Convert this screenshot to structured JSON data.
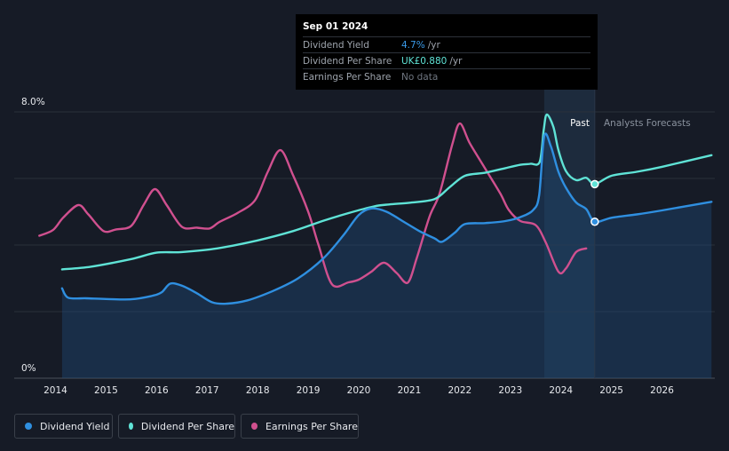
{
  "tooltip": {
    "date": "Sep 01 2024",
    "rows": [
      {
        "label": "Dividend Yield",
        "value": "4.7%",
        "unit": "/yr"
      },
      {
        "label": "Dividend Per Share",
        "value": "UK£0.880",
        "unit": "/yr"
      },
      {
        "label": "Earnings Per Share",
        "value": "No data",
        "unit": ""
      }
    ]
  },
  "period_labels": {
    "past": "Past",
    "forecast": "Analysts Forecasts"
  },
  "legend": [
    {
      "label": "Dividend Yield",
      "color": "#2f8fe0"
    },
    {
      "label": "Dividend Per Share",
      "color": "#5fe3d6"
    },
    {
      "label": "Earnings Per Share",
      "color": "#d0508f"
    }
  ],
  "colors": {
    "background": "#161b26",
    "forecast_shade": "#1d2b3d",
    "dividend_yield": "#2f8fe0",
    "dividend_per_share": "#5fe3d6",
    "earnings_per_share": "#d0508f"
  },
  "chart_data": {
    "type": "line",
    "x_ticks": [
      "2014",
      "2015",
      "2016",
      "2017",
      "2018",
      "2019",
      "2020",
      "2021",
      "2022",
      "2023",
      "2024",
      "2025",
      "2026"
    ],
    "y_tick_labels": [
      "8.0%",
      "0%"
    ],
    "ylim": [
      0,
      8
    ],
    "xlim": [
      2013.68,
      2026.98
    ],
    "grid": true,
    "past_end": 2024.67,
    "shade_start": 2023.67,
    "series": [
      {
        "name": "Dividend Yield",
        "unit": "%",
        "fill": true,
        "points": [
          [
            2014.13,
            2.7
          ],
          [
            2014.25,
            2.42
          ],
          [
            2014.6,
            2.4
          ],
          [
            2015.0,
            2.38
          ],
          [
            2015.5,
            2.37
          ],
          [
            2015.9,
            2.47
          ],
          [
            2016.1,
            2.58
          ],
          [
            2016.27,
            2.84
          ],
          [
            2016.5,
            2.78
          ],
          [
            2016.8,
            2.55
          ],
          [
            2017.1,
            2.28
          ],
          [
            2017.4,
            2.24
          ],
          [
            2017.8,
            2.34
          ],
          [
            2018.3,
            2.62
          ],
          [
            2018.8,
            3.0
          ],
          [
            2019.3,
            3.6
          ],
          [
            2019.7,
            4.3
          ],
          [
            2020.0,
            4.9
          ],
          [
            2020.25,
            5.1
          ],
          [
            2020.55,
            5.0
          ],
          [
            2020.9,
            4.69
          ],
          [
            2021.2,
            4.42
          ],
          [
            2021.5,
            4.2
          ],
          [
            2021.65,
            4.1
          ],
          [
            2021.9,
            4.37
          ],
          [
            2022.1,
            4.63
          ],
          [
            2022.5,
            4.66
          ],
          [
            2022.9,
            4.72
          ],
          [
            2023.2,
            4.84
          ],
          [
            2023.45,
            5.05
          ],
          [
            2023.57,
            5.5
          ],
          [
            2023.67,
            7.27
          ],
          [
            2023.8,
            6.97
          ],
          [
            2023.95,
            6.2
          ],
          [
            2024.1,
            5.72
          ],
          [
            2024.3,
            5.28
          ],
          [
            2024.5,
            5.08
          ],
          [
            2024.67,
            4.7
          ],
          [
            2025.0,
            4.82
          ],
          [
            2025.5,
            4.92
          ],
          [
            2026.0,
            5.04
          ],
          [
            2026.98,
            5.3
          ]
        ]
      },
      {
        "name": "Dividend Per Share",
        "unit": "UK£",
        "fill": false,
        "points": [
          [
            2014.13,
            3.27
          ],
          [
            2014.7,
            3.35
          ],
          [
            2015.5,
            3.58
          ],
          [
            2016.0,
            3.77
          ],
          [
            2016.5,
            3.79
          ],
          [
            2017.2,
            3.9
          ],
          [
            2018.0,
            4.14
          ],
          [
            2018.7,
            4.42
          ],
          [
            2019.3,
            4.73
          ],
          [
            2019.8,
            4.96
          ],
          [
            2020.3,
            5.16
          ],
          [
            2020.6,
            5.22
          ],
          [
            2021.0,
            5.27
          ],
          [
            2021.5,
            5.38
          ],
          [
            2021.8,
            5.74
          ],
          [
            2022.1,
            6.08
          ],
          [
            2022.5,
            6.17
          ],
          [
            2022.9,
            6.31
          ],
          [
            2023.2,
            6.41
          ],
          [
            2023.4,
            6.44
          ],
          [
            2023.58,
            6.5
          ],
          [
            2023.66,
            7.45
          ],
          [
            2023.72,
            7.92
          ],
          [
            2023.85,
            7.55
          ],
          [
            2023.95,
            6.85
          ],
          [
            2024.1,
            6.22
          ],
          [
            2024.3,
            5.95
          ],
          [
            2024.5,
            6.02
          ],
          [
            2024.67,
            5.83
          ],
          [
            2025.0,
            6.08
          ],
          [
            2025.5,
            6.2
          ],
          [
            2026.0,
            6.35
          ],
          [
            2026.98,
            6.7
          ]
        ]
      },
      {
        "name": "Earnings Per Share",
        "unit": "UK£",
        "fill": false,
        "points": [
          [
            2013.68,
            4.28
          ],
          [
            2013.95,
            4.45
          ],
          [
            2014.15,
            4.82
          ],
          [
            2014.45,
            5.2
          ],
          [
            2014.65,
            4.92
          ],
          [
            2014.95,
            4.42
          ],
          [
            2015.2,
            4.47
          ],
          [
            2015.5,
            4.58
          ],
          [
            2015.75,
            5.22
          ],
          [
            2015.97,
            5.68
          ],
          [
            2016.2,
            5.2
          ],
          [
            2016.5,
            4.55
          ],
          [
            2016.8,
            4.52
          ],
          [
            2017.05,
            4.5
          ],
          [
            2017.25,
            4.7
          ],
          [
            2017.6,
            4.96
          ],
          [
            2017.95,
            5.35
          ],
          [
            2018.2,
            6.2
          ],
          [
            2018.45,
            6.85
          ],
          [
            2018.7,
            6.1
          ],
          [
            2019.0,
            5.0
          ],
          [
            2019.2,
            4.02
          ],
          [
            2019.47,
            2.82
          ],
          [
            2019.8,
            2.88
          ],
          [
            2020.0,
            2.96
          ],
          [
            2020.25,
            3.2
          ],
          [
            2020.5,
            3.47
          ],
          [
            2020.75,
            3.16
          ],
          [
            2020.97,
            2.87
          ],
          [
            2021.15,
            3.62
          ],
          [
            2021.4,
            4.85
          ],
          [
            2021.6,
            5.55
          ],
          [
            2021.85,
            7.02
          ],
          [
            2022.0,
            7.65
          ],
          [
            2022.2,
            7.05
          ],
          [
            2022.5,
            6.3
          ],
          [
            2022.8,
            5.55
          ],
          [
            2022.97,
            5.05
          ],
          [
            2023.2,
            4.72
          ],
          [
            2023.5,
            4.6
          ],
          [
            2023.7,
            4.08
          ],
          [
            2023.95,
            3.2
          ],
          [
            2024.1,
            3.3
          ],
          [
            2024.3,
            3.79
          ],
          [
            2024.5,
            3.9
          ]
        ]
      }
    ]
  }
}
